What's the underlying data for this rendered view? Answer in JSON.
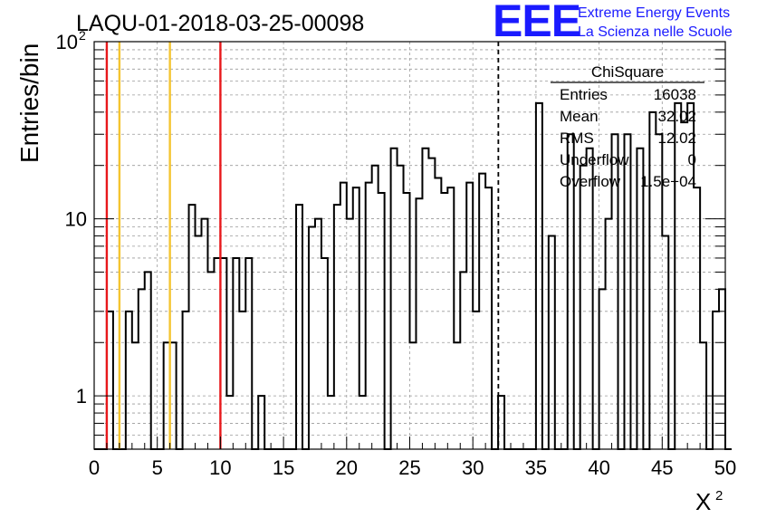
{
  "header": {
    "logo_text": "EEE",
    "logo_line1": "Extreme Energy Events",
    "logo_line2": "La Scienza nelle Scuole"
  },
  "colors": {
    "logo": "#1a1aff",
    "histogram": "#000000",
    "red_marker": "#e8181b",
    "yellow_marker": "#f4c430",
    "grid": "#9a9a9a"
  },
  "stats": {
    "title": "ChiSquare",
    "rows": [
      {
        "label": "Entries",
        "value": "16038"
      },
      {
        "label": "Mean",
        "value": "32.02"
      },
      {
        "label": "RMS",
        "value": "12.02"
      },
      {
        "label": "Underflow",
        "value": "0"
      },
      {
        "label": "Overflow",
        "value": "1.5e+04"
      }
    ]
  },
  "chart_data": {
    "type": "histogram",
    "title": "LAQU-01-2018-03-25-00098",
    "xlabel": "X",
    "xlabel_sup": "2",
    "ylabel": "Entries/bin",
    "xlim": [
      0,
      50
    ],
    "ylim": [
      0.5,
      100
    ],
    "y_scale": "log",
    "grid": true,
    "bin_width": 0.5,
    "x_ticks": [
      0,
      5,
      10,
      15,
      20,
      25,
      30,
      35,
      40,
      45,
      50
    ],
    "y_ticks": [
      {
        "value": 1,
        "label": "1",
        "sup": ""
      },
      {
        "value": 10,
        "label": "10",
        "sup": ""
      },
      {
        "value": 100,
        "label": "10",
        "sup": "2"
      }
    ],
    "bin_values": [
      0,
      0,
      3,
      0,
      0,
      3,
      2,
      4,
      5,
      0,
      0,
      2,
      2,
      0,
      3,
      12,
      8,
      10,
      5,
      6,
      6,
      1,
      6,
      3,
      6,
      0,
      1,
      0,
      0,
      0,
      0,
      0,
      12,
      0,
      9,
      10,
      6,
      1,
      12,
      16,
      10,
      15,
      1,
      16,
      20,
      14,
      0,
      25,
      20,
      14,
      2,
      13,
      25,
      22,
      17,
      14,
      15,
      2,
      5,
      16,
      3,
      18,
      15,
      0,
      1,
      0,
      0,
      0,
      0,
      0,
      45,
      0,
      8,
      0,
      0,
      30,
      0,
      20,
      25,
      0,
      4,
      10,
      30,
      0,
      30,
      0,
      25,
      0,
      40,
      30,
      8,
      0,
      45,
      35,
      45,
      15,
      2,
      0,
      3,
      4,
      0
    ],
    "markers": [
      {
        "x": 1,
        "color": "red",
        "style": "solid"
      },
      {
        "x": 2,
        "color": "yellow",
        "style": "solid"
      },
      {
        "x": 6,
        "color": "yellow",
        "style": "solid"
      },
      {
        "x": 10,
        "color": "red",
        "style": "solid"
      },
      {
        "x": 32.02,
        "color": "black",
        "style": "dashed"
      }
    ]
  }
}
